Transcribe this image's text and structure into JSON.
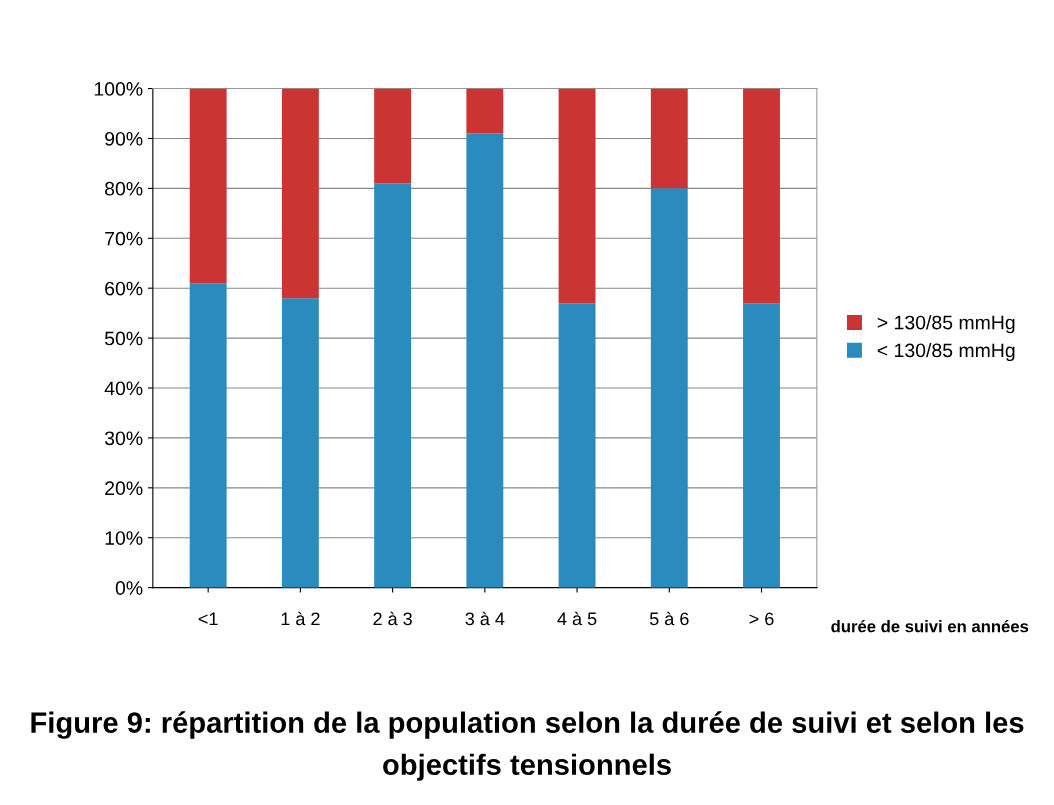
{
  "chart_data": {
    "type": "bar",
    "title": "Figure 9: répartition de la population selon la durée de suivi et selon les objectifs tensionnels",
    "xlabel": "durée de suivi en années",
    "categories": [
      "<1",
      "1 à 2",
      "2 à 3",
      "3 à 4",
      "4 à 5",
      "5 à 6",
      "> 6"
    ],
    "stacked": true,
    "series": [
      {
        "name": "< 130/85 mmHg",
        "color": "#2a8bbf",
        "values": [
          61,
          58,
          81,
          91,
          57,
          80,
          57
        ]
      },
      {
        "name": "> 130/85 mmHg",
        "color": "#cc3333",
        "values": [
          39,
          42,
          19,
          9,
          43,
          20,
          43
        ]
      }
    ],
    "ylim": [
      0,
      100
    ],
    "yticks": [
      {
        "value": 0,
        "label": "0%"
      },
      {
        "value": 10,
        "label": "10%"
      },
      {
        "value": 20,
        "label": "20%"
      },
      {
        "value": 30,
        "label": "30%"
      },
      {
        "value": 40,
        "label": "40%"
      },
      {
        "value": 50,
        "label": "50%"
      },
      {
        "value": 60,
        "label": "60%"
      },
      {
        "value": 70,
        "label": "70%"
      },
      {
        "value": 80,
        "label": "80%"
      },
      {
        "value": 90,
        "label": "90%"
      },
      {
        "value": 100,
        "label": "100%"
      }
    ],
    "grid": "y",
    "legend": "right"
  }
}
